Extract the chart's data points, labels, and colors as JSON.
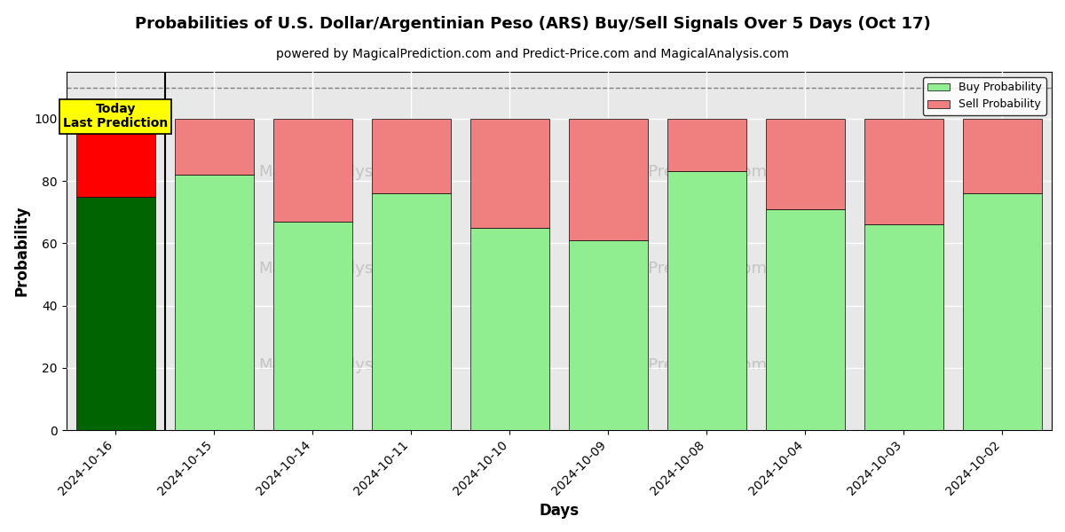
{
  "title": "Probabilities of U.S. Dollar/Argentinian Peso (ARS) Buy/Sell Signals Over 5 Days (Oct 17)",
  "subtitle": "powered by MagicalPrediction.com and Predict-Price.com and MagicalAnalysis.com",
  "xlabel": "Days",
  "ylabel": "Probability",
  "categories": [
    "2024-10-16",
    "2024-10-15",
    "2024-10-14",
    "2024-10-11",
    "2024-10-10",
    "2024-10-09",
    "2024-10-08",
    "2024-10-04",
    "2024-10-03",
    "2024-10-02"
  ],
  "buy_values": [
    75,
    82,
    67,
    76,
    65,
    61,
    83,
    71,
    66,
    76
  ],
  "sell_values": [
    25,
    18,
    33,
    24,
    35,
    39,
    17,
    29,
    34,
    24
  ],
  "today_buy_color": "#006400",
  "today_sell_color": "#FF0000",
  "buy_color": "#90EE90",
  "sell_color": "#F08080",
  "today_box_color": "#FFFF00",
  "ylim": [
    0,
    115
  ],
  "yticks": [
    0,
    20,
    40,
    60,
    80,
    100
  ],
  "dashed_line_y": 110,
  "legend_buy_label": "Buy Probability",
  "legend_sell_label": "Sell Probability",
  "today_label": "Today\nLast Prediction",
  "title_fontsize": 13,
  "subtitle_fontsize": 10,
  "axis_label_fontsize": 12,
  "tick_fontsize": 10,
  "bar_width": 0.8
}
